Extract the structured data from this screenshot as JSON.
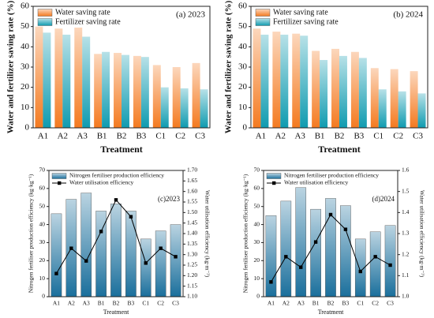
{
  "chart_data": [
    {
      "type": "bar",
      "annotation": "(a) 2023",
      "xlabel": "Treatment",
      "ylabel": "Water and fertilizer saving rate (%)",
      "categories": [
        "A1",
        "A2",
        "A3",
        "B1",
        "B2",
        "B3",
        "C1",
        "C2",
        "C3"
      ],
      "series": [
        {
          "name": "Water saving rate",
          "color": "#f47a20",
          "values": [
            50,
            49,
            49.5,
            36.5,
            37,
            35.5,
            31,
            30,
            32
          ]
        },
        {
          "name": "Fertilizer saving rate",
          "color": "#0f9bb0",
          "values": [
            47,
            46,
            45,
            37.5,
            36,
            35,
            20,
            19.5,
            19
          ]
        }
      ],
      "ylim": [
        0,
        60
      ],
      "yticks": [
        0,
        10,
        20,
        30,
        40,
        50,
        60
      ],
      "legend": "upper left"
    },
    {
      "type": "bar",
      "annotation": "(b) 2024",
      "xlabel": "Treatment",
      "ylabel": "Water and fertilizer saving rate (%)",
      "categories": [
        "A1",
        "A2",
        "A3",
        "B1",
        "B2",
        "B3",
        "C1",
        "C2",
        "C3"
      ],
      "series": [
        {
          "name": "Water saving rate",
          "color": "#f47a20",
          "values": [
            49,
            47.5,
            46.5,
            38,
            39,
            37.5,
            29.5,
            29,
            28
          ]
        },
        {
          "name": "Fertilizer saving rate",
          "color": "#0f9bb0",
          "values": [
            46,
            46,
            45.5,
            33.5,
            35.5,
            34.5,
            19,
            18,
            17
          ]
        }
      ],
      "ylim": [
        0,
        60
      ],
      "yticks": [
        0,
        10,
        20,
        30,
        40,
        50,
        60
      ],
      "legend": "upper left"
    },
    {
      "type": "combo",
      "annotation": "(c)2023",
      "xlabel": "Treatment",
      "ylabel": "Nitrogen fertiliser production efficiency (kg·kg⁻¹)",
      "y2label": "Water utilisation efficiency (kg·m⁻³)",
      "categories": [
        "A1",
        "A2",
        "A3",
        "B1",
        "B2",
        "B3",
        "C1",
        "C2",
        "C3"
      ],
      "series": [
        {
          "name": "Nitrogen fertiliser production efficiency",
          "color": "#1a6f9c",
          "values": [
            46,
            54,
            57.5,
            47.5,
            51.5,
            47.5,
            32,
            36.5,
            40
          ]
        },
        {
          "name": "Water utilisation efficiency",
          "color": "#000000",
          "axis": "y2",
          "values": [
            1.21,
            1.33,
            1.27,
            1.41,
            1.56,
            1.48,
            1.26,
            1.33,
            1.29
          ]
        }
      ],
      "ylim": [
        0,
        70
      ],
      "yticks": [
        0,
        10,
        20,
        30,
        40,
        50,
        60,
        70
      ],
      "y2lim": [
        1.1,
        1.7
      ],
      "y2ticks": [
        {
          "value": 1.1,
          "label": "1.10"
        },
        1.15,
        {
          "value": 1.2,
          "label": "1.20"
        },
        1.25,
        {
          "value": 1.3,
          "label": "1.30"
        },
        1.35,
        {
          "value": 1.4,
          "label": "1.40"
        },
        1.45,
        {
          "value": 1.5,
          "label": "1.50"
        },
        1.55,
        {
          "value": 1.6,
          "label": "1.60"
        },
        1.65,
        {
          "value": 1.7,
          "label": "1.70"
        }
      ],
      "legend": "upper left"
    },
    {
      "type": "combo",
      "annotation": "(d)2024",
      "xlabel": "Treatment",
      "ylabel": "Nitrogen fertiliser production efficiency (kg·kg⁻¹)",
      "y2label": "Water utilisation efficiency (kg·m⁻³)",
      "categories": [
        "A1",
        "A2",
        "A3",
        "B1",
        "B2",
        "B3",
        "C1",
        "C2",
        "C3"
      ],
      "series": [
        {
          "name": "Nitrogen fertiliser production efficiency",
          "color": "#1a6f9c",
          "values": [
            45,
            53,
            60.5,
            48.5,
            54.5,
            50.5,
            32,
            36,
            39.5
          ]
        },
        {
          "name": "Water utilisation efficiency",
          "color": "#000000",
          "axis": "y2",
          "values": [
            1.07,
            1.19,
            1.14,
            1.26,
            1.39,
            1.32,
            1.12,
            1.19,
            1.15
          ]
        }
      ],
      "ylim": [
        0,
        70
      ],
      "yticks": [
        0,
        10,
        20,
        30,
        40,
        50,
        60,
        70
      ],
      "y2lim": [
        1.0,
        1.6
      ],
      "y2ticks": [
        {
          "value": 1.0,
          "label": "1.0"
        },
        1.1,
        1.2,
        1.3,
        1.4,
        1.5,
        1.6
      ],
      "legend": "upper left"
    }
  ]
}
